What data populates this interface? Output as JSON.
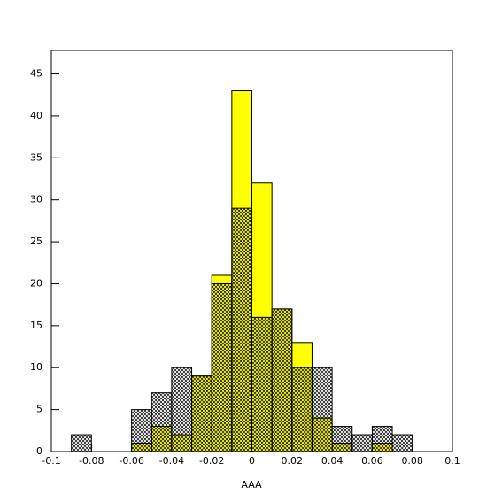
{
  "chart_data": {
    "type": "histogram",
    "x_label": "AAA",
    "bins": [
      -0.1,
      -0.09,
      -0.08,
      -0.07,
      -0.06,
      -0.05,
      -0.04,
      -0.03,
      -0.02,
      -0.01,
      0,
      0.01,
      0.02,
      0.03,
      0.04,
      0.05,
      0.06,
      0.07,
      0.08,
      0.09,
      0.1
    ],
    "series": [
      {
        "color": "#ffff00",
        "values": [
          0,
          0,
          0,
          0,
          1,
          3,
          2,
          9,
          21,
          43,
          32,
          17,
          13,
          4,
          1,
          0,
          1,
          0,
          0,
          0
        ]
      },
      {
        "color": "#000000",
        "pattern": "crosshatch",
        "values": [
          0,
          2,
          0,
          0,
          5,
          7,
          10,
          9,
          20,
          29,
          16,
          17,
          10,
          10,
          3,
          2,
          3,
          2,
          0,
          0
        ]
      }
    ],
    "xlim": [
      -0.1,
      0.1
    ],
    "xticks": [
      -0.1,
      -0.08,
      -0.06,
      -0.04,
      -0.02,
      0,
      0.02,
      0.04,
      0.06,
      0.08,
      0.1
    ],
    "ylim": [
      0,
      47.8
    ],
    "yticks": [
      0,
      5,
      10,
      15,
      20,
      25,
      30,
      35,
      40,
      45
    ]
  }
}
